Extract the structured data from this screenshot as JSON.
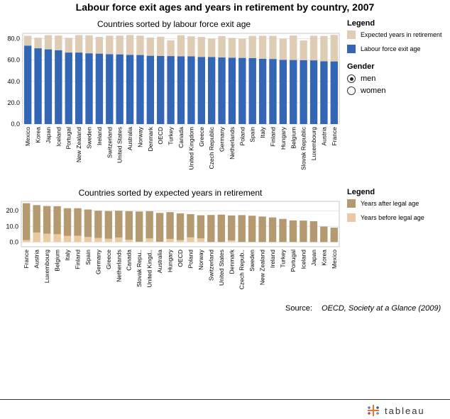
{
  "title": "Labour force exit ages and years in retirement by country, 2007",
  "colors": {
    "exit_age": "#3366b5",
    "expected_years": "#dfccb4",
    "after_legal": "#b59970",
    "before_legal": "#ecc9a3",
    "grid": "#e4e4e4",
    "axis": "#888888"
  },
  "chart_data": [
    {
      "type": "bar",
      "stacked": true,
      "title": "Countries sorted by labour force exit age",
      "categories": [
        "Mexico",
        "Korea",
        "Japan",
        "Iceland",
        "Portugal",
        "New Zealand",
        "Sweden",
        "Ireland",
        "Switzerland",
        "United States",
        "Australia",
        "Norway",
        "Denmark",
        "OECD",
        "Turkey",
        "Canada",
        "United Kingdom",
        "Greece",
        "Czech Republic",
        "Germany",
        "Netherlands",
        "Poland",
        "Spain",
        "Italy",
        "Finland",
        "Hungary",
        "Belgium",
        "Slovak Republic",
        "Luxembourg",
        "Austria",
        "France"
      ],
      "series": [
        {
          "name": "Labour force exit age",
          "values": [
            73.5,
            71.0,
            70.0,
            69.2,
            67.0,
            67.0,
            66.3,
            66.0,
            65.5,
            65.3,
            64.8,
            64.7,
            64.0,
            63.8,
            63.7,
            63.5,
            63.5,
            62.9,
            62.8,
            62.4,
            62.1,
            62.0,
            61.8,
            61.1,
            61.0,
            60.1,
            60.0,
            59.8,
            59.7,
            58.9,
            58.7
          ]
        },
        {
          "name": "Expected years in retirement",
          "values": [
            9.2,
            9.9,
            13.3,
            13.7,
            13.8,
            16.3,
            16.8,
            15.7,
            17.3,
            17.5,
            18.6,
            18.1,
            17.0,
            18.0,
            14.8,
            19.7,
            18.7,
            18.7,
            17.2,
            20.0,
            18.6,
            17.9,
            20.8,
            21.6,
            21.6,
            19.8,
            22.9,
            18.5,
            23.0,
            23.6,
            24.8
          ]
        }
      ],
      "ylim": [
        0,
        85
      ],
      "y_ticks": [
        0,
        20,
        40,
        60,
        80
      ],
      "y_tick_labels": [
        "0.0",
        "20.0",
        "40.0",
        "60.0",
        "80.0"
      ],
      "legend_title": "Legend",
      "legend_placement": "right",
      "grid": true
    },
    {
      "type": "bar",
      "stacked": true,
      "title": "Countries sorted by expected years in retirement",
      "categories": [
        "France",
        "Austria",
        "Luxembourg",
        "Belgium",
        "Italy",
        "Finland",
        "Spain",
        "Germany",
        "Greece",
        "Netherlands",
        "Canada",
        "Slovak Repu..",
        "United Kingd..",
        "Australia",
        "Hungary",
        "OECD",
        "Poland",
        "Norway",
        "Switzerland",
        "United States",
        "Denmark",
        "Czech Repub..",
        "Sweden",
        "New Zealand",
        "Ireland",
        "Turkey",
        "Portugal",
        "Iceland",
        "Japan",
        "Korea",
        "Mexico"
      ],
      "series": [
        {
          "name": "Years before legal age",
          "values": [
            1.3,
            6.1,
            5.3,
            5.0,
            3.9,
            4.0,
            3.2,
            2.6,
            2.1,
            2.9,
            1.5,
            0.2,
            2.3,
            0.2,
            2.0,
            1.2,
            3.0,
            2.3,
            0.0,
            0.0,
            1.0,
            0.0,
            0.0,
            0.0,
            0.0,
            0.0,
            0.0,
            0.0,
            0.0,
            0.0,
            0.0
          ]
        },
        {
          "name": "Years after legal age",
          "values": [
            23.5,
            17.5,
            17.7,
            17.9,
            17.7,
            17.6,
            17.6,
            17.4,
            17.7,
            17.1,
            18.2,
            19.3,
            17.4,
            18.4,
            17.1,
            17.1,
            14.8,
            14.8,
            17.3,
            17.5,
            16.0,
            17.2,
            16.8,
            16.3,
            15.7,
            14.8,
            13.8,
            13.7,
            13.3,
            9.9,
            9.2
          ]
        }
      ],
      "ylim": [
        -3,
        26
      ],
      "y_ticks": [
        0,
        10,
        20
      ],
      "y_tick_labels": [
        "0.0",
        "10.0",
        "20.0"
      ],
      "legend_title": "Legend",
      "legend_placement": "right",
      "grid": true
    }
  ],
  "gender": {
    "label": "Gender",
    "options": [
      {
        "label": "men",
        "selected": true
      },
      {
        "label": "women",
        "selected": false
      }
    ]
  },
  "source": {
    "label": "Source:",
    "value": "OECD, Society at a Glance (2009)"
  },
  "logo": {
    "text": "tableau"
  }
}
